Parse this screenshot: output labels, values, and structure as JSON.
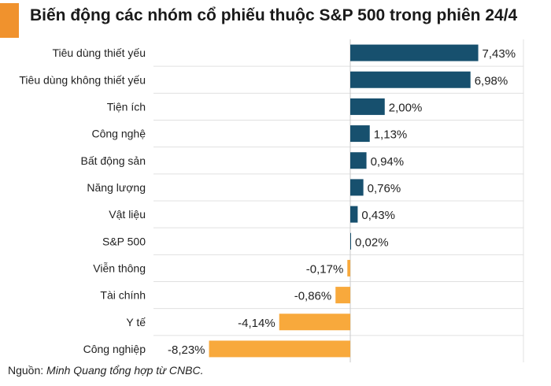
{
  "title": "Biến động các nhóm cổ phiếu thuộc S&P 500 trong phiên 24/4",
  "source": {
    "prefix": "Nguồn: ",
    "text": "Minh Quang tổng hợp từ CNBC."
  },
  "colors": {
    "accent": "#f0922d",
    "positive": "#17506e",
    "negative": "#f8a93c",
    "grid": "#e0e0e0"
  },
  "chart_data": {
    "type": "bar",
    "orientation": "horizontal",
    "categories": [
      "Tiêu dùng thiết yếu",
      "Tiêu dùng không thiết yếu",
      "Tiện ích",
      "Công nghệ",
      "Bất động sản",
      "Năng lượng",
      "Vật liệu",
      "S&P 500",
      "Viễn thông",
      "Tài chính",
      "Y tế",
      "Công nghiệp"
    ],
    "values": [
      7.43,
      6.98,
      2.0,
      1.13,
      0.94,
      0.76,
      0.43,
      0.02,
      -0.17,
      -0.86,
      -4.14,
      -8.23
    ],
    "labels": [
      "7,43%",
      "6,98%",
      "2,00%",
      "1,13%",
      "0,94%",
      "0,76%",
      "0,43%",
      "0,02%",
      "-0,17%",
      "-0,86%",
      "-4,14%",
      "-8,23%"
    ],
    "xlim": [
      -8.3,
      7.45
    ],
    "grid": true
  }
}
